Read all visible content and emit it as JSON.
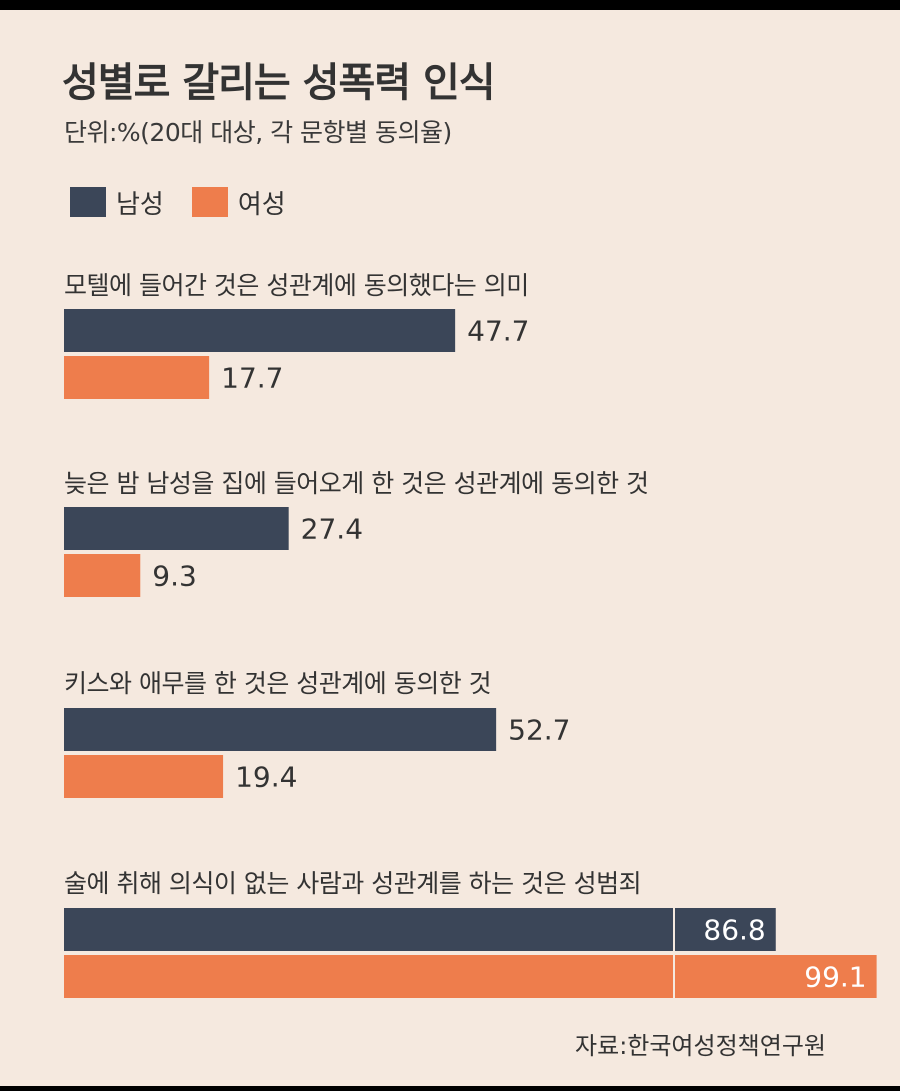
{
  "chart_data": {
    "type": "bar",
    "orientation": "horizontal",
    "title": "성별로 갈리는 성폭력 인식",
    "subtitle": "단위:%(20대 대상, 각 문항별 동의율)",
    "source": "자료:한국여성정책연구원",
    "categories": [
      "모텔에 들어간 것은 성관계에 동의했다는 의미",
      "늦은 밤 남성을 집에 들어오게 한 것은 성관계에 동의한 것",
      "키스와 애무를 한 것은 성관계에 동의한 것",
      "술에 취해 의식이 없는 사람과 성관계를 하는 것은 성범죄"
    ],
    "series": [
      {
        "name": "남성",
        "color": "#3b4658",
        "values": [
          47.7,
          27.4,
          52.7,
          86.8
        ]
      },
      {
        "name": "여성",
        "color": "#ee7d4c",
        "values": [
          17.7,
          9.3,
          19.4,
          99.1
        ]
      }
    ],
    "value_labels": [
      [
        "47.7",
        "27.4",
        "52.7",
        "86.8"
      ],
      [
        "17.7",
        "9.3",
        "19.4",
        "99.1"
      ]
    ],
    "xlim": [
      0,
      100
    ],
    "grid": false,
    "legend_position": "top-left"
  }
}
